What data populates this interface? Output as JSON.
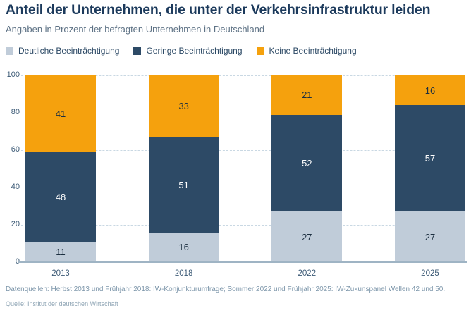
{
  "chart_data": {
    "type": "bar",
    "stacked": true,
    "title": "Anteil der Unternehmen, die unter der Verkehrsinfrastruktur leiden",
    "subtitle": "Angaben in Prozent der befragten Unternehmen in Deutschland",
    "categories": [
      "2013",
      "2018",
      "2022",
      "2025"
    ],
    "series": [
      {
        "name": "Deutliche Beeinträchtigung",
        "color": "#c0ccd9",
        "label_color": "#1c2f40",
        "values": [
          11,
          16,
          27,
          27
        ]
      },
      {
        "name": "Geringe Beeinträchtigung",
        "color": "#2d4a66",
        "label_color": "#ffffff",
        "values": [
          48,
          51,
          52,
          57
        ]
      },
      {
        "name": "Keine Beeinträchtigung",
        "color": "#f5a10d",
        "label_color": "#1c2f40",
        "values": [
          41,
          33,
          21,
          16
        ]
      }
    ],
    "ylim": [
      0,
      100
    ],
    "yticks": [
      0,
      20,
      40,
      60,
      80,
      100
    ],
    "grid": "horizontal-dashed",
    "legend_position": "top-left"
  },
  "footer": {
    "datasources": "Datenquellen: Herbst 2013 und Frühjahr 2018: IW-Konjunkturumfrage; Sommer 2022 und Frühjahr 2025: IW-Zukunspanel Wellen 42 und 50.",
    "source": "Quelle: Institut der deutschen Wirtschaft"
  },
  "colors": {
    "title": "#1c3a5c",
    "subtitle": "#5e7285",
    "axis_text": "#3c5a76",
    "gridline": "#c9d8e3",
    "baseline": "#9fb4c4",
    "background": "#ffffff"
  }
}
